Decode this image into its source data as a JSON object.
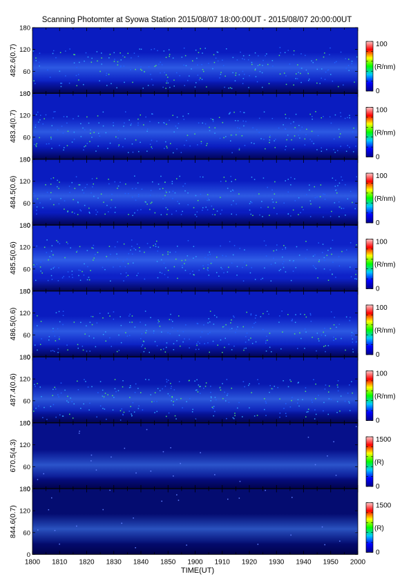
{
  "title": "Scanning Photomter at Syowa Station 2015/08/07 18:00:00UT - 2015/08/07 20:00:00UT",
  "chart_data": {
    "type": "heatmap",
    "xlabel": "TIME(UT)",
    "x_ticks": [
      "1800",
      "1810",
      "1820",
      "1830",
      "1840",
      "1850",
      "1900",
      "1910",
      "1920",
      "1930",
      "1940",
      "1950",
      "2000"
    ],
    "y_ticks": [
      "0",
      "60",
      "120",
      "180"
    ],
    "ylim": [
      0,
      180
    ],
    "colormap": [
      "#00008c",
      "#0000ff",
      "#00c8ff",
      "#00ff00",
      "#ffff00",
      "#ff0000",
      "#ffc8c8"
    ],
    "panels": [
      {
        "ylabel": "482.6(0.7)",
        "cbar_label": "(R/nm)",
        "cbar_range": [
          "0",
          "100"
        ],
        "band_center": 70,
        "background": "#0a1cc0"
      },
      {
        "ylabel": "483.4(0.7)",
        "cbar_label": "(R/nm)",
        "cbar_range": [
          "0",
          "100"
        ],
        "band_center": 75,
        "background": "#0a1cc0"
      },
      {
        "ylabel": "484.5(0.6)",
        "cbar_label": "(R/nm)",
        "cbar_range": [
          "0",
          "100"
        ],
        "band_center": 80,
        "background": "#0a1cc0"
      },
      {
        "ylabel": "485.5(0.6)",
        "cbar_label": "(R/nm)",
        "cbar_range": [
          "0",
          "100"
        ],
        "band_center": 85,
        "background": "#0e22c8"
      },
      {
        "ylabel": "486.5(0.6)",
        "cbar_label": "(R/nm)",
        "cbar_range": [
          "0",
          "100"
        ],
        "band_center": 70,
        "background": "#0a1cc0"
      },
      {
        "ylabel": "487.4(0.6)",
        "cbar_label": "(R/nm)",
        "cbar_range": [
          "0",
          "100"
        ],
        "band_center": 65,
        "background": "#0818b0"
      },
      {
        "ylabel": "670.5(4.3)",
        "cbar_label": "(R)",
        "cbar_range": [
          "0",
          "1500"
        ],
        "band_center": 65,
        "background": "#06108a"
      },
      {
        "ylabel": "844.6(0.7)",
        "cbar_label": "(R)",
        "cbar_range": [
          "0",
          "1500"
        ],
        "band_center": 70,
        "background": "#040c70"
      }
    ]
  }
}
